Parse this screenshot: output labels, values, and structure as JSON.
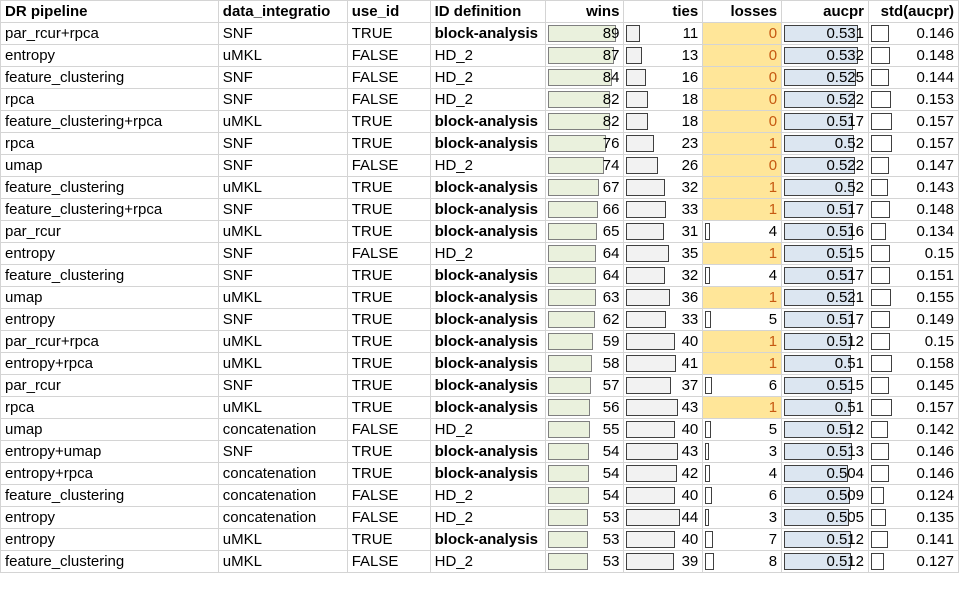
{
  "headers": {
    "pipeline": "DR pipeline",
    "integration": "data_integratio",
    "use_id": "use_id",
    "id_def": "ID definition",
    "wins": "wins",
    "ties": "ties",
    "losses": "losses",
    "aucpr": "aucpr",
    "std": "std(aucpr)"
  },
  "colors": {
    "losses_highlight": "#ffe699",
    "losses_highlight_text": "#c65911",
    "wins_bar": "#eaf1dd",
    "ties_bar": "#f2f2f2",
    "aucpr_bar": "#dce6f1"
  },
  "rows": [
    {
      "pipeline": "par_rcur+rpca",
      "integration": "SNF",
      "use_id": "TRUE",
      "id_def": "block-analysis",
      "wins": "89",
      "ties": "11",
      "losses": "0",
      "aucpr": "0.531",
      "std": "0.146"
    },
    {
      "pipeline": "entropy",
      "integration": "uMKL",
      "use_id": "FALSE",
      "id_def": "HD_2",
      "wins": "87",
      "ties": "13",
      "losses": "0",
      "aucpr": "0.532",
      "std": "0.148"
    },
    {
      "pipeline": "feature_clustering",
      "integration": "SNF",
      "use_id": "FALSE",
      "id_def": "HD_2",
      "wins": "84",
      "ties": "16",
      "losses": "0",
      "aucpr": "0.525",
      "std": "0.144"
    },
    {
      "pipeline": "rpca",
      "integration": "SNF",
      "use_id": "FALSE",
      "id_def": "HD_2",
      "wins": "82",
      "ties": "18",
      "losses": "0",
      "aucpr": "0.522",
      "std": "0.153"
    },
    {
      "pipeline": "feature_clustering+rpca",
      "integration": "uMKL",
      "use_id": "TRUE",
      "id_def": "block-analysis",
      "wins": "82",
      "ties": "18",
      "losses": "0",
      "aucpr": "0.517",
      "std": "0.157"
    },
    {
      "pipeline": "rpca",
      "integration": "SNF",
      "use_id": "TRUE",
      "id_def": "block-analysis",
      "wins": "76",
      "ties": "23",
      "losses": "1",
      "aucpr": "0.52",
      "std": "0.157"
    },
    {
      "pipeline": "umap",
      "integration": "SNF",
      "use_id": "FALSE",
      "id_def": "HD_2",
      "wins": "74",
      "ties": "26",
      "losses": "0",
      "aucpr": "0.522",
      "std": "0.147"
    },
    {
      "pipeline": "feature_clustering",
      "integration": "uMKL",
      "use_id": "TRUE",
      "id_def": "block-analysis",
      "wins": "67",
      "ties": "32",
      "losses": "1",
      "aucpr": "0.52",
      "std": "0.143"
    },
    {
      "pipeline": "feature_clustering+rpca",
      "integration": "SNF",
      "use_id": "TRUE",
      "id_def": "block-analysis",
      "wins": "66",
      "ties": "33",
      "losses": "1",
      "aucpr": "0.517",
      "std": "0.148"
    },
    {
      "pipeline": "par_rcur",
      "integration": "uMKL",
      "use_id": "TRUE",
      "id_def": "block-analysis",
      "wins": "65",
      "ties": "31",
      "losses": "4",
      "aucpr": "0.516",
      "std": "0.134"
    },
    {
      "pipeline": "entropy",
      "integration": "SNF",
      "use_id": "FALSE",
      "id_def": "HD_2",
      "wins": "64",
      "ties": "35",
      "losses": "1",
      "aucpr": "0.515",
      "std": "0.15"
    },
    {
      "pipeline": "feature_clustering",
      "integration": "SNF",
      "use_id": "TRUE",
      "id_def": "block-analysis",
      "wins": "64",
      "ties": "32",
      "losses": "4",
      "aucpr": "0.517",
      "std": "0.151"
    },
    {
      "pipeline": "umap",
      "integration": "uMKL",
      "use_id": "TRUE",
      "id_def": "block-analysis",
      "wins": "63",
      "ties": "36",
      "losses": "1",
      "aucpr": "0.521",
      "std": "0.155"
    },
    {
      "pipeline": "entropy",
      "integration": "SNF",
      "use_id": "TRUE",
      "id_def": "block-analysis",
      "wins": "62",
      "ties": "33",
      "losses": "5",
      "aucpr": "0.517",
      "std": "0.149"
    },
    {
      "pipeline": "par_rcur+rpca",
      "integration": "uMKL",
      "use_id": "TRUE",
      "id_def": "block-analysis",
      "wins": "59",
      "ties": "40",
      "losses": "1",
      "aucpr": "0.512",
      "std": "0.15"
    },
    {
      "pipeline": "entropy+rpca",
      "integration": "uMKL",
      "use_id": "TRUE",
      "id_def": "block-analysis",
      "wins": "58",
      "ties": "41",
      "losses": "1",
      "aucpr": "0.51",
      "std": "0.158"
    },
    {
      "pipeline": "par_rcur",
      "integration": "SNF",
      "use_id": "TRUE",
      "id_def": "block-analysis",
      "wins": "57",
      "ties": "37",
      "losses": "6",
      "aucpr": "0.515",
      "std": "0.145"
    },
    {
      "pipeline": "rpca",
      "integration": "uMKL",
      "use_id": "TRUE",
      "id_def": "block-analysis",
      "wins": "56",
      "ties": "43",
      "losses": "1",
      "aucpr": "0.51",
      "std": "0.157"
    },
    {
      "pipeline": "umap",
      "integration": "concatenation",
      "use_id": "FALSE",
      "id_def": "HD_2",
      "wins": "55",
      "ties": "40",
      "losses": "5",
      "aucpr": "0.512",
      "std": "0.142"
    },
    {
      "pipeline": "entropy+umap",
      "integration": "SNF",
      "use_id": "TRUE",
      "id_def": "block-analysis",
      "wins": "54",
      "ties": "43",
      "losses": "3",
      "aucpr": "0.513",
      "std": "0.146"
    },
    {
      "pipeline": "entropy+rpca",
      "integration": "concatenation",
      "use_id": "TRUE",
      "id_def": "block-analysis",
      "wins": "54",
      "ties": "42",
      "losses": "4",
      "aucpr": "0.504",
      "std": "0.146"
    },
    {
      "pipeline": "feature_clustering",
      "integration": "concatenation",
      "use_id": "FALSE",
      "id_def": "HD_2",
      "wins": "54",
      "ties": "40",
      "losses": "6",
      "aucpr": "0.509",
      "std": "0.124"
    },
    {
      "pipeline": "entropy",
      "integration": "concatenation",
      "use_id": "FALSE",
      "id_def": "HD_2",
      "wins": "53",
      "ties": "44",
      "losses": "3",
      "aucpr": "0.505",
      "std": "0.135"
    },
    {
      "pipeline": "entropy",
      "integration": "uMKL",
      "use_id": "TRUE",
      "id_def": "block-analysis",
      "wins": "53",
      "ties": "40",
      "losses": "7",
      "aucpr": "0.512",
      "std": "0.141"
    },
    {
      "pipeline": "feature_clustering",
      "integration": "uMKL",
      "use_id": "FALSE",
      "id_def": "HD_2",
      "wins": "53",
      "ties": "39",
      "losses": "8",
      "aucpr": "0.512",
      "std": "0.127"
    }
  ]
}
